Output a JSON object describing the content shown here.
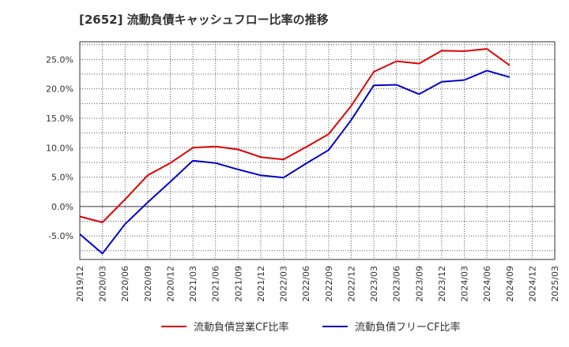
{
  "chart_data": {
    "type": "line",
    "title": "[2652]  流動負債キャッシュフロー比率の推移",
    "categories": [
      "2019/12",
      "2020/03",
      "2020/06",
      "2020/09",
      "2020/12",
      "2021/03",
      "2021/06",
      "2021/09",
      "2021/12",
      "2022/03",
      "2022/06",
      "2022/09",
      "2022/12",
      "2023/03",
      "2023/06",
      "2023/09",
      "2023/12",
      "2024/03",
      "2024/06",
      "2024/09",
      "2024/12",
      "2025/03"
    ],
    "y_ticks": [
      "-5.0%",
      "0.0%",
      "5.0%",
      "10.0%",
      "15.0%",
      "20.0%",
      "25.0%"
    ],
    "y_tick_values": [
      -5,
      0,
      5,
      10,
      15,
      20,
      25
    ],
    "ylim": [
      -9,
      28
    ],
    "grid": true,
    "legend_position": "bottom-center",
    "series": [
      {
        "name": "流動負債営業CF比率",
        "color": "#dd0000",
        "values": [
          -1.7,
          -2.7,
          1.2,
          5.3,
          7.4,
          10.0,
          10.2,
          9.7,
          8.4,
          8.0,
          10.1,
          12.3,
          17.1,
          22.9,
          24.7,
          24.3,
          26.5,
          26.4,
          26.8,
          24.0,
          null,
          null
        ]
      },
      {
        "name": "流動負債フリーCF比率",
        "color": "#0000cc",
        "values": [
          -4.7,
          -8.0,
          -3.0,
          0.7,
          4.2,
          7.8,
          7.4,
          6.3,
          5.3,
          4.9,
          7.3,
          9.6,
          14.7,
          20.6,
          20.7,
          19.1,
          21.2,
          21.5,
          23.1,
          22.0,
          null,
          null
        ]
      }
    ]
  }
}
